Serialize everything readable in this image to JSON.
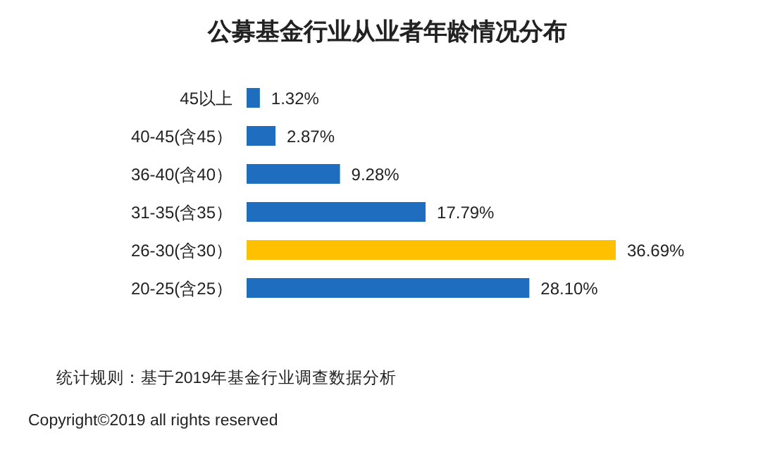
{
  "chart_data": {
    "type": "bar",
    "orientation": "horizontal",
    "title": "公募基金行业从业者年龄情况分布",
    "categories": [
      "45以上",
      "40-45(含45）",
      "36-40(含40）",
      "31-35(含35）",
      "26-30(含30）",
      "20-25(含25）"
    ],
    "values": [
      1.32,
      2.87,
      9.28,
      17.79,
      36.69,
      28.1
    ],
    "value_labels": [
      "1.32%",
      "2.87%",
      "9.28%",
      "17.79%",
      "36.69%",
      "28.10%"
    ],
    "colors": [
      "#1f6dbf",
      "#1f6dbf",
      "#1f6dbf",
      "#1f6dbf",
      "#ffc000",
      "#1f6dbf"
    ],
    "annotations": [
      "统计规则：基于2019年基金行业调查数据分析",
      "Copyright©2019 all rights reserved"
    ]
  }
}
